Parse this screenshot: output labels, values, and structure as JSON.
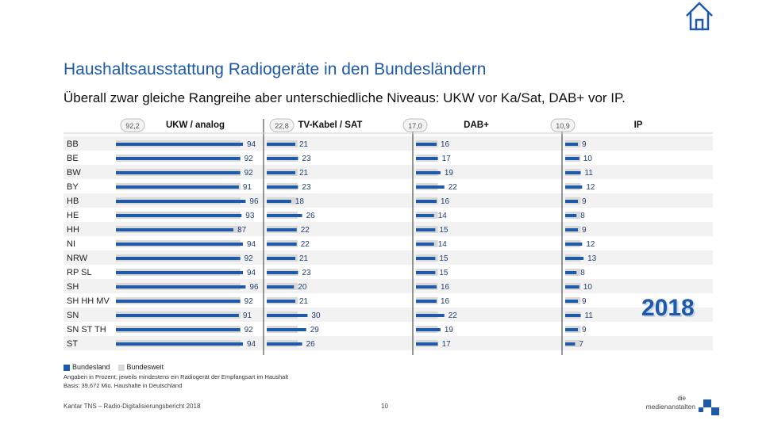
{
  "header": {
    "title": "Haushaltsausstattung Radiogeräte in den Bundesländern",
    "subtitle": "Überall zwar gleiche Rangreihe aber unterschiedliche Niveaus: UKW vor Ka/Sat, DAB+ vor IP."
  },
  "chart_data": {
    "type": "bar",
    "categories": [
      "BB",
      "BE",
      "BW",
      "BY",
      "HB",
      "HE",
      "HH",
      "NI",
      "NRW",
      "RP SL",
      "SH",
      "SH HH MV",
      "SN",
      "SN ST TH",
      "ST"
    ],
    "panels": [
      {
        "name": "UKW / analog",
        "national": 92.2,
        "national_label": "92,2",
        "values": [
          94,
          92,
          92,
          91,
          96,
          93,
          87,
          94,
          92,
          94,
          96,
          92,
          91,
          92,
          94
        ]
      },
      {
        "name": "TV-Kabel / SAT",
        "national": 22.8,
        "national_label": "22,8",
        "values": [
          21,
          23,
          21,
          23,
          18,
          26,
          22,
          22,
          21,
          23,
          20,
          21,
          30,
          29,
          26
        ]
      },
      {
        "name": "DAB+",
        "national": 17.0,
        "national_label": "17,0",
        "values": [
          16,
          17,
          19,
          22,
          16,
          14,
          15,
          14,
          15,
          15,
          16,
          16,
          22,
          19,
          17
        ]
      },
      {
        "name": "IP",
        "national": 10.9,
        "national_label": "10,9",
        "values": [
          9,
          10,
          11,
          12,
          9,
          8,
          9,
          12,
          13,
          8,
          10,
          9,
          11,
          9,
          7
        ]
      }
    ],
    "legend": [
      "Bundesland",
      "Bundesweit"
    ]
  },
  "colors": {
    "bundesland": "#1f5aa6",
    "bundesweit": "#d9d9d9",
    "title": "#1f5aa6"
  },
  "year_badge": "2018",
  "notes": {
    "line1": "Angaben in Prozent; jeweils mindestens ein Radiogerät der Empfangsart im Haushalt",
    "line2": "Basis: 39,672 Mio. Haushalte in Deutschland"
  },
  "footer": {
    "source": "Kantar TNS – Radio-Digitalisierungsbericht 2018",
    "page": "10",
    "brand_small": "die",
    "brand_name": "medienanstalten"
  },
  "icons": {
    "home": "home-icon",
    "logo": "medienanstalten-logo"
  }
}
